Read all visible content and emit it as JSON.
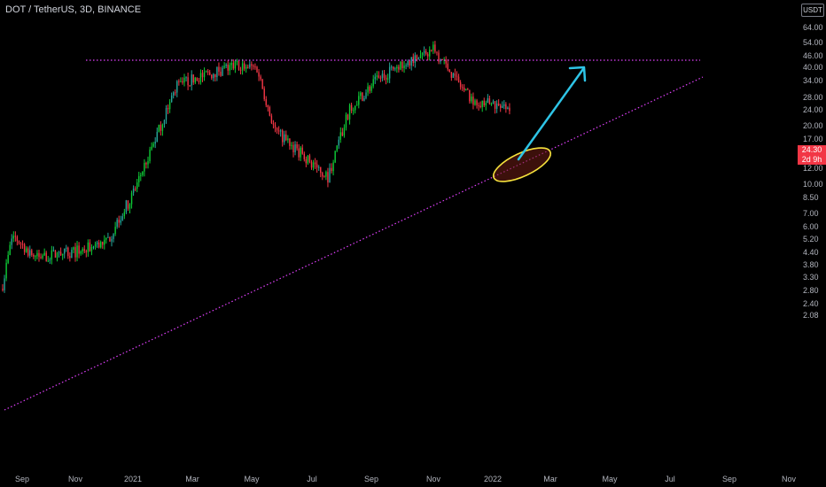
{
  "header": {
    "title": "DOT / TetherUS, 3D, BINANCE",
    "currency": "USDT"
  },
  "price_tag": {
    "price": "24.30",
    "countdown": "2d 9h"
  },
  "colors": {
    "up": "#26a69a",
    "up_bright": "#0ecb36",
    "down": "#f23645",
    "trendline": "#e040fb",
    "arrow": "#2ec4e6",
    "ellipse": "#f5e13c"
  },
  "chart_data": {
    "type": "candlestick",
    "title": "DOT / TetherUS, 3D, BINANCE",
    "y_scale": "log",
    "ylim": [
      1.95,
      75
    ],
    "y_ticks": [
      "64.00",
      "54.00",
      "46.00",
      "40.00",
      "34.00",
      "28.00",
      "24.00",
      "20.00",
      "17.00",
      "14.00",
      "12.00",
      "10.00",
      "8.50",
      "7.00",
      "6.00",
      "5.20",
      "4.40",
      "3.80",
      "3.30",
      "2.80",
      "2.40",
      "2.08"
    ],
    "x_ticks": [
      "Sep",
      "Nov",
      "2021",
      "Mar",
      "May",
      "Jul",
      "Sep",
      "Nov",
      "2022",
      "Mar",
      "May",
      "Jul",
      "Sep",
      "Nov"
    ],
    "approx_close_path": [
      [
        "Aug 2020",
        2.9
      ],
      [
        "Sep 2020",
        5.5
      ],
      [
        "Oct 2020",
        4.2
      ],
      [
        "Nov 2020",
        4.5
      ],
      [
        "Dec 2020",
        5.0
      ],
      [
        "Jan 2021",
        9.0
      ],
      [
        "Feb 2021",
        33.0
      ],
      [
        "Mar 2021",
        38.0
      ],
      [
        "Apr 2021",
        42.0
      ],
      [
        "May 2021",
        40.0
      ],
      [
        "Jun 2021",
        19.0
      ],
      [
        "Jul 2021",
        11.0
      ],
      [
        "Aug 2021",
        25.0
      ],
      [
        "Sep 2021",
        33.0
      ],
      [
        "Oct 2021",
        42.0
      ],
      [
        "Nov 2021",
        50.0
      ],
      [
        "Dec 2021",
        28.0
      ],
      [
        "Jan 2022",
        24.3
      ]
    ],
    "last_price": 24.3,
    "annotations": [
      {
        "kind": "horizontal_resistance",
        "price": 49.5
      },
      {
        "kind": "ascending_support",
        "from": [
          "Aug 2020",
          3.0
        ],
        "to": [
          "Aug 2022",
          42.0
        ]
      },
      {
        "kind": "highlight_ellipse",
        "at": [
          "Feb 2022",
          22.0
        ]
      },
      {
        "kind": "arrow_up",
        "from": [
          "Feb 2022",
          23.0
        ],
        "to": [
          "Apr 2022",
          46.0
        ]
      }
    ]
  }
}
